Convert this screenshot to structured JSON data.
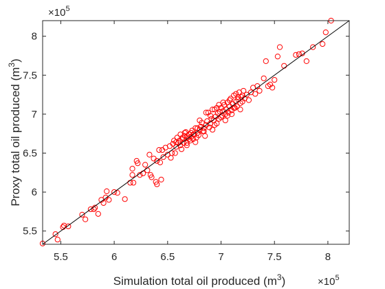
{
  "chart_data": {
    "type": "scatter",
    "title": "",
    "xlabel": "Simulation total oil produced (m",
    "ylabel": "Proxy total oil produced (m",
    "unit_superscript": "3",
    "unit_close": ")",
    "x_multiplier_base": "×10",
    "y_multiplier_base": "×10",
    "x_multiplier_exp": "5",
    "y_multiplier_exp": "5",
    "xlim": [
      5.33,
      8.2
    ],
    "ylim": [
      5.33,
      8.2
    ],
    "xticks": [
      5.5,
      6,
      6.5,
      7,
      7.5,
      8
    ],
    "yticks": [
      5.5,
      6,
      6.5,
      7,
      7.5,
      8
    ],
    "xtick_labels": [
      "5.5",
      "6",
      "6.5",
      "7",
      "7.5",
      "8"
    ],
    "ytick_labels": [
      "5.5",
      "6",
      "6.5",
      "7",
      "7.5",
      "8"
    ],
    "grid": false,
    "marker": "circle-open",
    "marker_color": "#ff0000",
    "reference_line": {
      "type": "y=x",
      "color": "#000000",
      "from": [
        5.33,
        5.33
      ],
      "to": [
        8.2,
        8.2
      ]
    },
    "series": [
      {
        "points": [
          [
            5.33,
            5.34
          ],
          [
            5.45,
            5.46
          ],
          [
            5.47,
            5.39
          ],
          [
            5.52,
            5.55
          ],
          [
            5.53,
            5.57
          ],
          [
            5.57,
            5.56
          ],
          [
            5.7,
            5.71
          ],
          [
            5.73,
            5.65
          ],
          [
            5.78,
            5.78
          ],
          [
            5.81,
            5.78
          ],
          [
            5.82,
            5.8
          ],
          [
            5.85,
            5.72
          ],
          [
            5.88,
            5.9
          ],
          [
            5.9,
            5.86
          ],
          [
            5.92,
            5.93
          ],
          [
            5.93,
            6.01
          ],
          [
            5.95,
            5.9
          ],
          [
            6.0,
            6.0
          ],
          [
            6.03,
            5.99
          ],
          [
            6.1,
            5.91
          ],
          [
            6.15,
            6.12
          ],
          [
            6.17,
            6.3
          ],
          [
            6.17,
            6.22
          ],
          [
            6.18,
            6.12
          ],
          [
            6.21,
            6.4
          ],
          [
            6.22,
            6.37
          ],
          [
            6.24,
            6.22
          ],
          [
            6.27,
            6.24
          ],
          [
            6.29,
            6.35
          ],
          [
            6.31,
            6.28
          ],
          [
            6.33,
            6.48
          ],
          [
            6.34,
            6.22
          ],
          [
            6.35,
            6.19
          ],
          [
            6.37,
            6.43
          ],
          [
            6.39,
            6.13
          ],
          [
            6.4,
            6.4
          ],
          [
            6.4,
            6.1
          ],
          [
            6.42,
            6.54
          ],
          [
            6.43,
            6.38
          ],
          [
            6.44,
            6.16
          ],
          [
            6.45,
            6.54
          ],
          [
            6.46,
            6.45
          ],
          [
            6.48,
            6.57
          ],
          [
            6.5,
            6.48
          ],
          [
            6.52,
            6.59
          ],
          [
            6.53,
            6.44
          ],
          [
            6.55,
            6.62
          ],
          [
            6.56,
            6.66
          ],
          [
            6.57,
            6.5
          ],
          [
            6.58,
            6.58
          ],
          [
            6.59,
            6.7
          ],
          [
            6.6,
            6.63
          ],
          [
            6.61,
            6.66
          ],
          [
            6.62,
            6.74
          ],
          [
            6.63,
            6.55
          ],
          [
            6.64,
            6.68
          ],
          [
            6.65,
            6.63
          ],
          [
            6.66,
            6.72
          ],
          [
            6.67,
            6.77
          ],
          [
            6.68,
            6.63
          ],
          [
            6.69,
            6.7
          ],
          [
            6.7,
            6.74
          ],
          [
            6.71,
            6.66
          ],
          [
            6.72,
            6.71
          ],
          [
            6.73,
            6.79
          ],
          [
            6.74,
            6.68
          ],
          [
            6.75,
            6.74
          ],
          [
            6.76,
            6.82
          ],
          [
            6.77,
            6.7
          ],
          [
            6.78,
            6.76
          ],
          [
            6.79,
            6.73
          ],
          [
            6.8,
            6.8
          ],
          [
            6.81,
            6.84
          ],
          [
            6.82,
            6.89
          ],
          [
            6.83,
            6.78
          ],
          [
            6.84,
            6.82
          ],
          [
            6.85,
            6.72
          ],
          [
            6.86,
            6.86
          ],
          [
            6.87,
            6.91
          ],
          [
            6.88,
            7.02
          ],
          [
            6.89,
            6.83
          ],
          [
            6.9,
            6.88
          ],
          [
            6.91,
            6.94
          ],
          [
            6.92,
            6.8
          ],
          [
            6.93,
            6.92
          ],
          [
            6.94,
            7.06
          ],
          [
            6.95,
            6.97
          ],
          [
            6.96,
            6.88
          ],
          [
            6.97,
            7.01
          ],
          [
            6.98,
            6.94
          ],
          [
            6.99,
            7.03
          ],
          [
            7.0,
            7.08
          ],
          [
            7.01,
            6.98
          ],
          [
            7.02,
            7.04
          ],
          [
            7.03,
            7.12
          ],
          [
            7.04,
            6.92
          ],
          [
            7.05,
            7.06
          ],
          [
            7.06,
            7.15
          ],
          [
            7.07,
            7.02
          ],
          [
            7.08,
            7.1
          ],
          [
            7.09,
            7.2
          ],
          [
            7.1,
            7.05
          ],
          [
            7.11,
            7.13
          ],
          [
            7.12,
            7.24
          ],
          [
            7.13,
            7.08
          ],
          [
            7.14,
            7.16
          ],
          [
            7.15,
            7.1
          ],
          [
            7.16,
            7.19
          ],
          [
            7.17,
            7.28
          ],
          [
            7.18,
            7.14
          ],
          [
            7.19,
            7.22
          ],
          [
            7.2,
            7.16
          ],
          [
            7.21,
            7.3
          ],
          [
            7.22,
            7.2
          ],
          [
            7.24,
            7.25
          ],
          [
            7.26,
            7.18
          ],
          [
            7.28,
            7.28
          ],
          [
            7.3,
            7.34
          ],
          [
            7.32,
            7.26
          ],
          [
            7.34,
            7.36
          ],
          [
            7.36,
            7.3
          ],
          [
            7.4,
            7.46
          ],
          [
            7.42,
            7.68
          ],
          [
            7.44,
            7.36
          ],
          [
            7.46,
            7.38
          ],
          [
            7.48,
            7.34
          ],
          [
            7.5,
            7.44
          ],
          [
            7.53,
            7.74
          ],
          [
            7.55,
            7.86
          ],
          [
            7.59,
            7.62
          ],
          [
            7.7,
            7.76
          ],
          [
            7.73,
            7.77
          ],
          [
            7.76,
            7.78
          ],
          [
            7.8,
            7.68
          ],
          [
            7.86,
            7.86
          ],
          [
            7.95,
            7.9
          ],
          [
            7.98,
            8.05
          ],
          [
            8.03,
            8.2
          ],
          [
            6.68,
            6.6
          ],
          [
            6.72,
            6.76
          ],
          [
            6.76,
            6.64
          ],
          [
            6.8,
            6.92
          ],
          [
            6.86,
            7.02
          ],
          [
            6.92,
            7.06
          ],
          [
            6.96,
            7.08
          ],
          [
            7.02,
            7.15
          ],
          [
            7.06,
            6.98
          ],
          [
            7.1,
            7.0
          ],
          [
            7.14,
            7.26
          ],
          [
            7.18,
            7.06
          ],
          [
            6.62,
            6.6
          ],
          [
            6.58,
            6.64
          ],
          [
            6.54,
            6.5
          ],
          [
            6.66,
            6.76
          ],
          [
            6.74,
            6.74
          ],
          [
            6.9,
            6.98
          ],
          [
            6.94,
            6.86
          ],
          [
            6.98,
            7.12
          ],
          [
            7.04,
            7.0
          ],
          [
            7.08,
            7.18
          ],
          [
            7.12,
            7.08
          ],
          [
            7.2,
            7.24
          ],
          [
            6.64,
            6.7
          ],
          [
            6.7,
            6.68
          ],
          [
            6.78,
            6.82
          ],
          [
            6.84,
            6.78
          ],
          [
            7.0,
            6.96
          ],
          [
            7.16,
            7.22
          ]
        ]
      }
    ]
  }
}
